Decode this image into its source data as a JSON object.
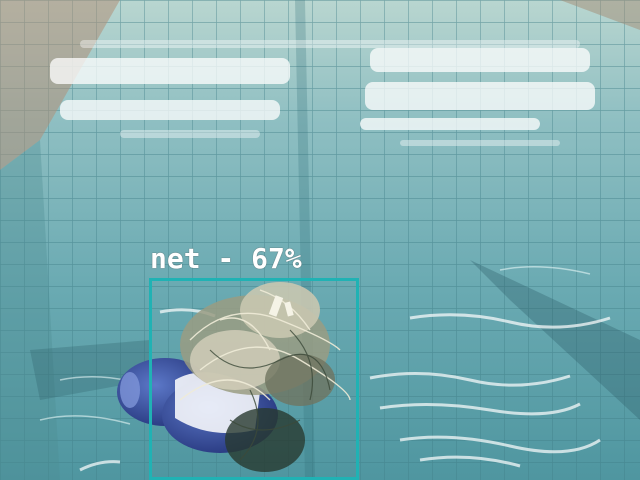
{
  "detection": {
    "class_name": "net",
    "separator": " - ",
    "confidence": "67%",
    "box_color": "#20b2b4"
  },
  "scene": {
    "water_color": "#6fb0b6",
    "tile_line_color": "#3f7e87",
    "object": "net-on-buoy"
  }
}
